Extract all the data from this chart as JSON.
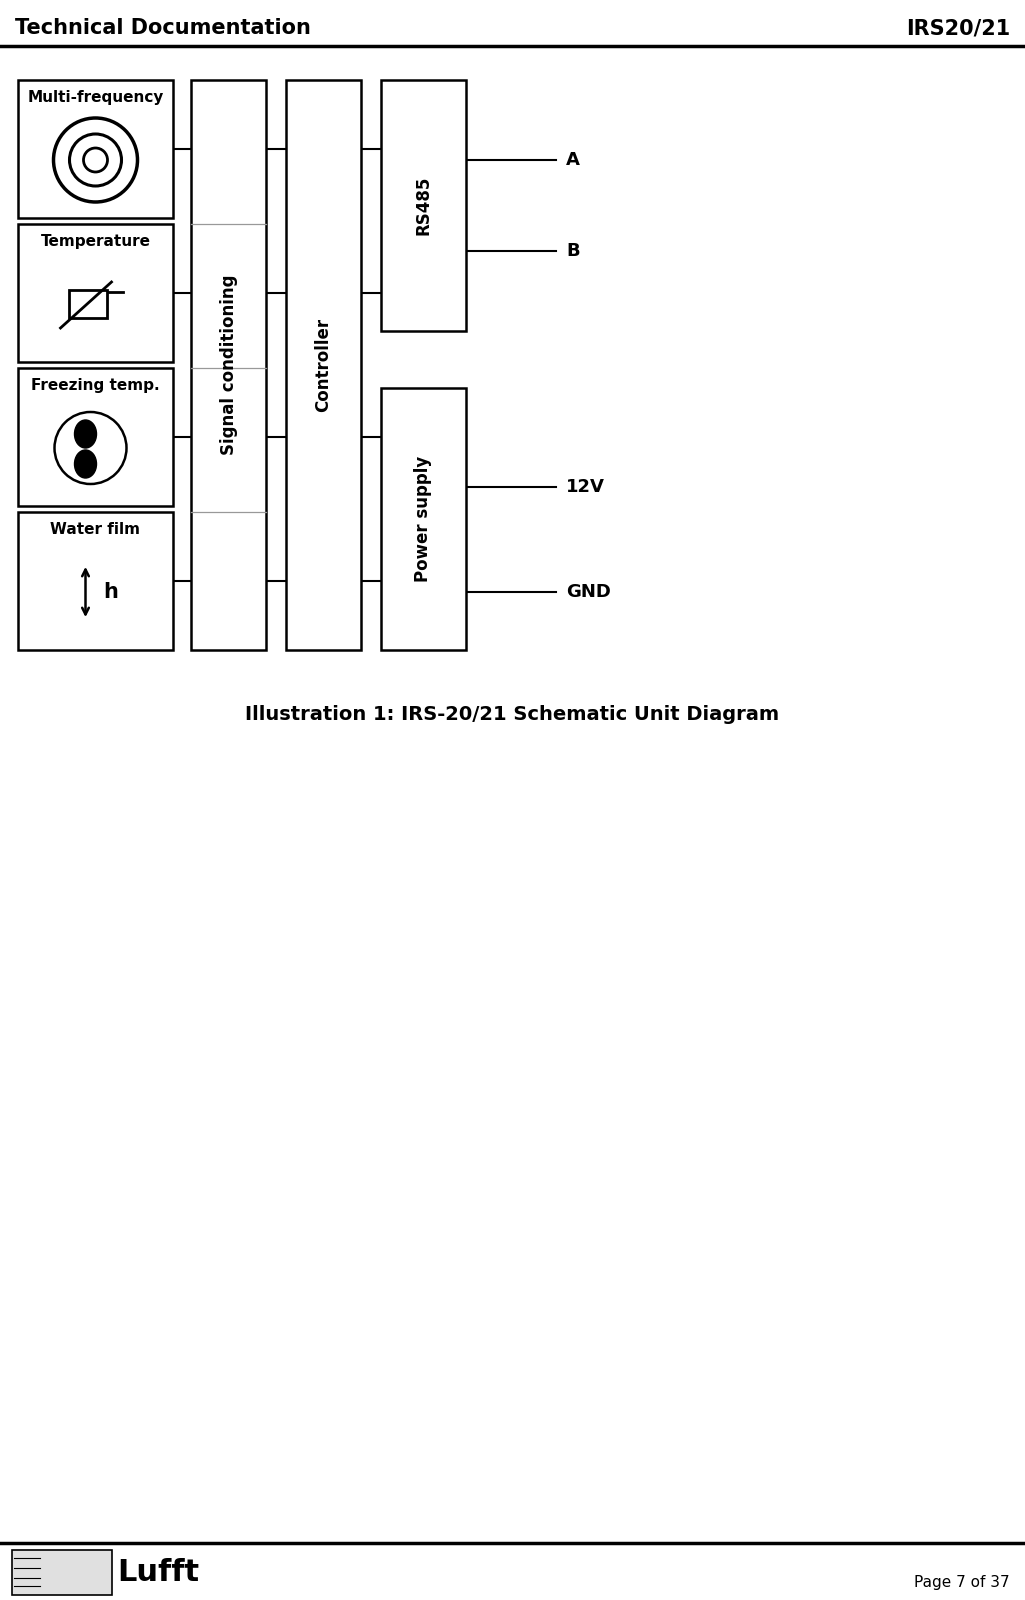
{
  "header_left": "Technical Documentation",
  "header_right": "IRS20/21",
  "footer_page": "Page 7 of 37",
  "caption": "Illustration 1: IRS-20/21 Schematic Unit Diagram",
  "sensor_labels": [
    "Multi-frequency",
    "Temperature",
    "Freezing temp.",
    "Water film"
  ],
  "block_labels": [
    "Signal conditioning",
    "Controller",
    "RS485",
    "Power supply"
  ],
  "output_labels": [
    "A",
    "B",
    "12V",
    "GND"
  ],
  "bg_color": "#ffffff",
  "border_color": "#000000",
  "text_color": "#000000",
  "line_color": "#000000",
  "header_fontsize": 15,
  "block_fontsize": 12,
  "sensor_label_fontsize": 11,
  "caption_fontsize": 14,
  "output_fontsize": 13
}
